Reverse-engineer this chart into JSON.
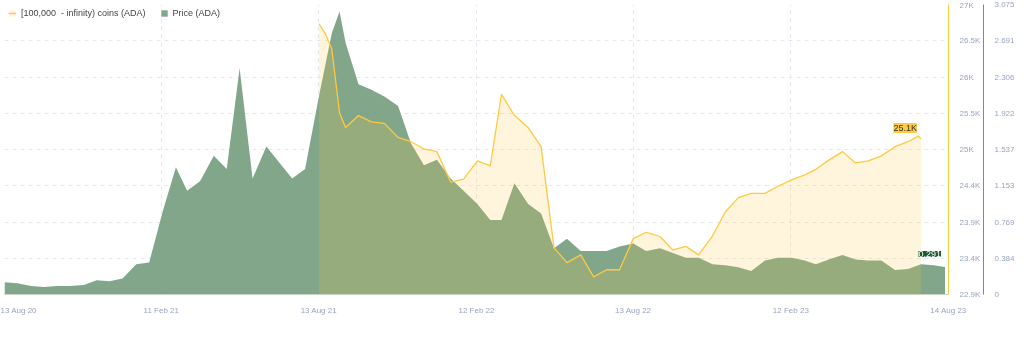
{
  "chart_data": {
    "type": "area",
    "legend": "top left",
    "grid": true,
    "xlim": [
      "2020-08-13",
      "2023-08-14"
    ],
    "xticks": [
      {
        "value": "2020-08-13",
        "label": "13 Aug 20"
      },
      {
        "value": "2021-02-11",
        "label": "11 Feb 21"
      },
      {
        "value": "2021-08-13",
        "label": "13 Aug 21"
      },
      {
        "value": "2022-02-12",
        "label": "12 Feb 22"
      },
      {
        "value": "2022-08-13",
        "label": "13 Aug 22"
      },
      {
        "value": "2023-02-12",
        "label": "12 Feb 23"
      },
      {
        "value": "2023-08-14",
        "label": "14 Aug 23"
      }
    ],
    "ylim": [
      22900,
      27000
    ],
    "yticks": [
      {
        "value": 22900,
        "label": "22.9K"
      },
      {
        "value": 23412.5,
        "label": "23.4K"
      },
      {
        "value": 23925,
        "label": "23.9K"
      },
      {
        "value": 24437.5,
        "label": "24.4K"
      },
      {
        "value": 24950,
        "label": "25K"
      },
      {
        "value": 25462.5,
        "label": "25.5K"
      },
      {
        "value": 25975,
        "label": "26K"
      },
      {
        "value": 26487.5,
        "label": "26.5K"
      },
      {
        "value": 27000,
        "label": "27K"
      }
    ],
    "y2lim": [
      0,
      3.075
    ],
    "y2ticks": [
      0,
      {
        "value": 0.384375,
        "label": "0.384"
      },
      {
        "value": 0.76875,
        "label": "0.769"
      },
      {
        "value": 1.153125,
        "label": "1.153"
      },
      {
        "value": 1.5375,
        "label": "1.537"
      },
      {
        "value": 1.921875,
        "label": "1.922"
      },
      {
        "value": 2.30625,
        "label": "2.306"
      },
      {
        "value": 2.690625,
        "label": "2.691"
      },
      3.075
    ],
    "series": [
      {
        "name": "Price (ADA)",
        "color": "#6b9776",
        "axis": "y2",
        "x": [
          "2020-08-13",
          "2020-08-28",
          "2020-09-13",
          "2020-09-28",
          "2020-10-13",
          "2020-10-28",
          "2020-11-13",
          "2020-11-28",
          "2020-12-13",
          "2020-12-28",
          "2021-01-13",
          "2021-01-28",
          "2021-02-13",
          "2021-02-28",
          "2021-03-13",
          "2021-03-28",
          "2021-04-13",
          "2021-04-28",
          "2021-05-13",
          "2021-05-28",
          "2021-06-13",
          "2021-06-28",
          "2021-07-13",
          "2021-07-28",
          "2021-08-13",
          "2021-08-28",
          "2021-09-06",
          "2021-09-13",
          "2021-09-28",
          "2021-10-13",
          "2021-10-28",
          "2021-11-13",
          "2021-11-28",
          "2021-12-13",
          "2021-12-28",
          "2022-01-13",
          "2022-01-28",
          "2022-02-13",
          "2022-02-28",
          "2022-03-13",
          "2022-03-28",
          "2022-04-13",
          "2022-04-28",
          "2022-05-13",
          "2022-05-28",
          "2022-06-13",
          "2022-06-28",
          "2022-07-13",
          "2022-07-28",
          "2022-08-13",
          "2022-08-28",
          "2022-09-13",
          "2022-09-28",
          "2022-10-13",
          "2022-10-28",
          "2022-11-13",
          "2022-11-28",
          "2022-12-13",
          "2022-12-28",
          "2023-01-13",
          "2023-01-28",
          "2023-02-13",
          "2023-02-28",
          "2023-03-13",
          "2023-03-28",
          "2023-04-13",
          "2023-04-28",
          "2023-05-13",
          "2023-05-28",
          "2023-06-13",
          "2023-06-28",
          "2023-07-13",
          "2023-07-28",
          "2023-08-10"
        ],
        "values": [
          0.13,
          0.12,
          0.09,
          0.08,
          0.09,
          0.09,
          0.1,
          0.15,
          0.14,
          0.17,
          0.32,
          0.34,
          0.89,
          1.35,
          1.1,
          1.2,
          1.47,
          1.33,
          2.4,
          1.23,
          1.57,
          1.4,
          1.23,
          1.33,
          2.1,
          2.77,
          3.0,
          2.67,
          2.23,
          2.17,
          2.1,
          2.0,
          1.6,
          1.37,
          1.43,
          1.23,
          1.1,
          0.96,
          0.79,
          0.79,
          1.18,
          0.96,
          0.86,
          0.49,
          0.59,
          0.46,
          0.46,
          0.46,
          0.51,
          0.54,
          0.46,
          0.49,
          0.44,
          0.39,
          0.39,
          0.32,
          0.31,
          0.29,
          0.25,
          0.36,
          0.39,
          0.39,
          0.36,
          0.32,
          0.37,
          0.42,
          0.37,
          0.36,
          0.36,
          0.26,
          0.27,
          0.32,
          0.31,
          0.291
        ]
      },
      {
        "name": "[100,000  - infinity) coins (ADA)",
        "color": "#ffc940",
        "x": [
          "2021-08-13",
          "2021-08-20",
          "2021-08-28",
          "2021-09-06",
          "2021-09-13",
          "2021-09-28",
          "2021-10-13",
          "2021-10-28",
          "2021-11-13",
          "2021-11-28",
          "2021-12-13",
          "2021-12-28",
          "2022-01-13",
          "2022-01-28",
          "2022-02-13",
          "2022-02-28",
          "2022-03-13",
          "2022-03-28",
          "2022-04-13",
          "2022-04-28",
          "2022-05-13",
          "2022-05-28",
          "2022-06-13",
          "2022-06-28",
          "2022-07-13",
          "2022-07-28",
          "2022-08-13",
          "2022-08-28",
          "2022-09-13",
          "2022-09-28",
          "2022-10-13",
          "2022-10-28",
          "2022-11-13",
          "2022-11-28",
          "2022-12-13",
          "2022-12-28",
          "2023-01-13",
          "2023-01-28",
          "2023-02-13",
          "2023-02-28",
          "2023-03-13",
          "2023-03-28",
          "2023-04-13",
          "2023-04-28",
          "2023-05-13",
          "2023-05-28",
          "2023-06-13",
          "2023-06-28",
          "2023-07-10",
          "2023-07-13"
        ],
        "values": [
          26730,
          26600,
          26370,
          25470,
          25260,
          25430,
          25340,
          25320,
          25120,
          25060,
          24960,
          24920,
          24490,
          24530,
          24790,
          24720,
          25730,
          25430,
          25260,
          24990,
          23560,
          23350,
          23460,
          23150,
          23250,
          23250,
          23690,
          23780,
          23720,
          23530,
          23580,
          23460,
          23730,
          24070,
          24270,
          24330,
          24330,
          24430,
          24520,
          24590,
          24670,
          24800,
          24920,
          24760,
          24790,
          24860,
          24990,
          25060,
          25140,
          25100
        ]
      }
    ],
    "annotations": [
      {
        "text": "25.1K",
        "x": "2023-07-13",
        "y": 25100
      },
      "0.291"
    ]
  }
}
